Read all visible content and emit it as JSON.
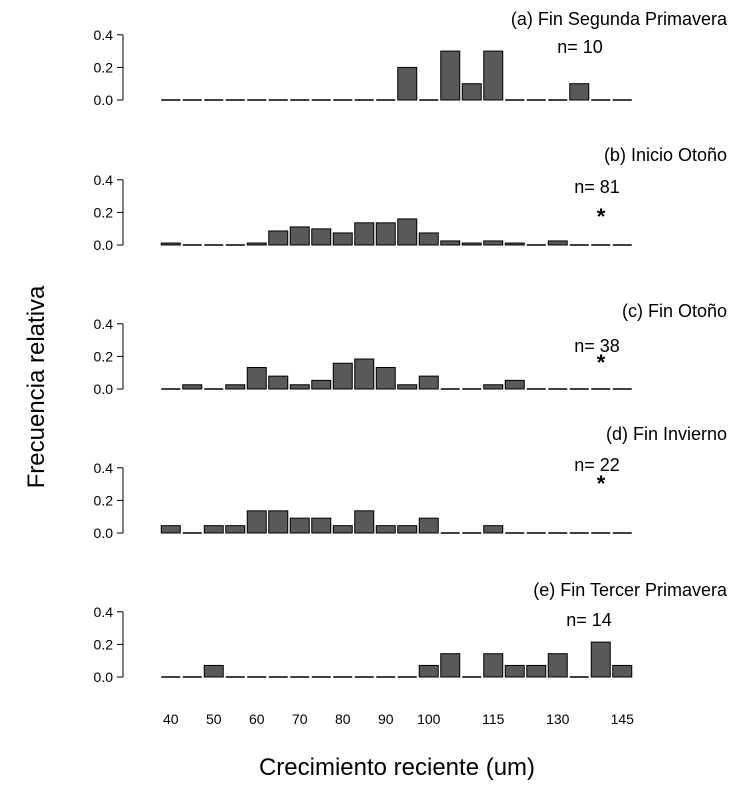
{
  "chart_data": {
    "type": "bar",
    "ylabel": "Frecuencia relativa",
    "xlabel": "Crecimiento reciente (um)",
    "x_bins": [
      40,
      45,
      50,
      55,
      60,
      65,
      70,
      75,
      80,
      85,
      90,
      95,
      100,
      105,
      110,
      115,
      120,
      125,
      130,
      135,
      140,
      145
    ],
    "x_tick_labels": [
      "40",
      "50",
      "60",
      "70",
      "80",
      "90",
      "100",
      "115",
      "130",
      "145"
    ],
    "y_ticks": [
      "0.0",
      "0.2",
      "0.4"
    ],
    "ylim": [
      0,
      0.4
    ],
    "bar_color": "#595959",
    "panels": [
      {
        "title": "(a) Fin Segunda Primavera",
        "n_label": "n= 10",
        "star_label": "",
        "values": [
          0,
          0,
          0,
          0,
          0,
          0,
          0,
          0,
          0,
          0,
          0,
          0.2,
          0,
          0.3,
          0.1,
          0.3,
          0,
          0,
          0,
          0.1,
          0,
          0
        ]
      },
      {
        "title": "(b) Inicio Otoño",
        "n_label": "n= 81",
        "star_label": "*",
        "values": [
          0.012,
          0,
          0,
          0,
          0.012,
          0.086,
          0.111,
          0.099,
          0.074,
          0.136,
          0.136,
          0.16,
          0.074,
          0.025,
          0.012,
          0.025,
          0.012,
          0,
          0.025,
          0,
          0,
          0
        ]
      },
      {
        "title": "(c) Fin Otoño",
        "n_label": "n= 38",
        "star_label": "*",
        "values": [
          0,
          0.026,
          0,
          0.026,
          0.132,
          0.079,
          0.026,
          0.053,
          0.158,
          0.184,
          0.132,
          0.026,
          0.079,
          0,
          0,
          0.026,
          0.053,
          0,
          0,
          0,
          0,
          0
        ]
      },
      {
        "title": "(d) Fin Invierno",
        "n_label": "n= 22",
        "star_label": "*",
        "values": [
          0.045,
          0,
          0.045,
          0.045,
          0.136,
          0.136,
          0.091,
          0.091,
          0.045,
          0.136,
          0.045,
          0.045,
          0.091,
          0,
          0,
          0.045,
          0,
          0,
          0,
          0,
          0,
          0
        ]
      },
      {
        "title": "(e) Fin Tercer Primavera",
        "n_label": "n= 14",
        "star_label": "",
        "values": [
          0,
          0,
          0.071,
          0,
          0,
          0,
          0,
          0,
          0,
          0,
          0,
          0,
          0.071,
          0.143,
          0,
          0.143,
          0.071,
          0.071,
          0.143,
          0,
          0.214,
          0.071
        ]
      }
    ]
  }
}
